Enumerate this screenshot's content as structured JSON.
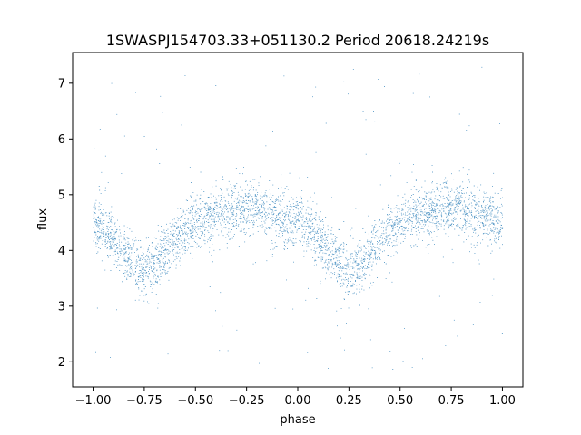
{
  "chart_data": {
    "type": "scatter",
    "title": "1SWASPJ154703.33+051130.2 Period 20618.24219s",
    "xlabel": "phase",
    "ylabel": "flux",
    "xlim": [
      -1.1,
      1.1
    ],
    "ylim": [
      1.55,
      7.55
    ],
    "xticks": [
      -1.0,
      -0.75,
      -0.5,
      -0.25,
      0.0,
      0.25,
      0.5,
      0.75,
      1.0
    ],
    "xtick_labels": [
      "−1.00",
      "−0.75",
      "−0.50",
      "−0.25",
      "0.00",
      "0.25",
      "0.50",
      "0.75",
      "1.00"
    ],
    "yticks": [
      2,
      3,
      4,
      5,
      6,
      7
    ],
    "ytick_labels": [
      "2",
      "3",
      "4",
      "5",
      "6",
      "7"
    ],
    "grid": false,
    "point_color": "#1f77b4",
    "series_curve": {
      "description_values": "approximate light-curve envelope, phase vs median flux",
      "x": [
        -1.0,
        -0.9,
        -0.8,
        -0.75,
        -0.7,
        -0.6,
        -0.5,
        -0.4,
        -0.3,
        -0.25,
        -0.2,
        -0.1,
        0.0,
        0.1,
        0.2,
        0.25,
        0.3,
        0.4,
        0.5,
        0.6,
        0.7,
        0.75,
        0.8,
        0.9,
        1.0
      ],
      "y": [
        4.5,
        4.2,
        3.75,
        3.65,
        3.75,
        4.2,
        4.5,
        4.65,
        4.75,
        4.78,
        4.75,
        4.6,
        4.5,
        4.2,
        3.75,
        3.65,
        3.75,
        4.2,
        4.5,
        4.65,
        4.75,
        4.78,
        4.75,
        4.6,
        4.5
      ]
    }
  }
}
